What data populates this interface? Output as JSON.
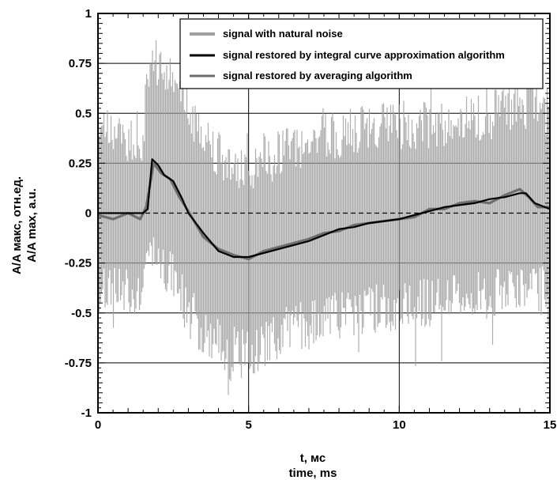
{
  "chart_data": {
    "type": "line",
    "xlabel": [
      "t, мс",
      "time, ms"
    ],
    "ylabel": [
      "A/A макс, отн.ед.",
      "A/A max, a.u."
    ],
    "xlim": [
      0,
      15
    ],
    "ylim": [
      -1,
      1
    ],
    "grid": true,
    "legend_position": "top-right",
    "x_ticks": [
      "0",
      "5",
      "10",
      "15"
    ],
    "y_ticks": [
      "1",
      "0.75",
      "0.5",
      "0.25",
      "0",
      "-0.25",
      "-0.5",
      "-0.75",
      "-1"
    ],
    "series": [
      {
        "name": "signal with natural noise",
        "color": "#a0a0a0",
        "style": "band",
        "x": [
          0,
          1.0,
          1.5,
          1.6,
          1.7,
          1.8,
          2.0,
          2.3,
          2.6,
          3.0,
          3.5,
          4.0,
          4.5,
          5.0,
          5.5,
          6.0,
          7.0,
          8.0,
          9.0,
          10.0,
          11.0,
          12.0,
          13.0,
          14.0,
          15.0
        ],
        "upper": [
          0.4,
          0.38,
          0.38,
          0.6,
          0.6,
          0.72,
          0.72,
          0.68,
          0.63,
          0.52,
          0.42,
          0.3,
          0.2,
          0.22,
          0.26,
          0.3,
          0.36,
          0.4,
          0.42,
          0.44,
          0.45,
          0.47,
          0.49,
          0.55,
          0.5
        ],
        "lower": [
          -0.4,
          -0.38,
          -0.38,
          -0.2,
          -0.2,
          -0.15,
          -0.2,
          -0.28,
          -0.35,
          -0.48,
          -0.6,
          -0.65,
          -0.68,
          -0.72,
          -0.66,
          -0.6,
          -0.55,
          -0.5,
          -0.48,
          -0.46,
          -0.45,
          -0.43,
          -0.41,
          -0.35,
          -0.4
        ]
      },
      {
        "name": "signal restored by integral curve approximation algorithm",
        "color": "#000000",
        "x": [
          0,
          1.5,
          1.65,
          1.8,
          2.0,
          2.2,
          2.5,
          2.8,
          3.0,
          3.5,
          4.0,
          4.5,
          5.0,
          5.5,
          6.0,
          6.5,
          7.0,
          7.5,
          8.0,
          8.5,
          9.0,
          9.5,
          10.0,
          10.5,
          11.0,
          11.5,
          12.0,
          12.5,
          13.0,
          13.5,
          14.0,
          14.2,
          14.5,
          15.0
        ],
        "y": [
          0,
          0,
          0.02,
          0.27,
          0.24,
          0.19,
          0.16,
          0.07,
          0.0,
          -0.1,
          -0.19,
          -0.22,
          -0.22,
          -0.2,
          -0.18,
          -0.16,
          -0.14,
          -0.11,
          -0.08,
          -0.07,
          -0.05,
          -0.04,
          -0.03,
          -0.01,
          0.01,
          0.03,
          0.04,
          0.05,
          0.07,
          0.08,
          0.1,
          0.1,
          0.05,
          0.02
        ]
      },
      {
        "name": "signal restored by averaging algorithm",
        "color": "#6e6e6e",
        "x": [
          0,
          0.5,
          1.0,
          1.4,
          1.6,
          1.85,
          2.1,
          2.4,
          2.7,
          3.0,
          3.5,
          4.0,
          4.5,
          5.0,
          5.5,
          6.0,
          6.5,
          7.0,
          7.5,
          8.0,
          8.5,
          9.0,
          9.5,
          10.0,
          10.5,
          11.0,
          11.5,
          12.0,
          12.5,
          13.0,
          13.5,
          14.0,
          14.3,
          14.6,
          15.0
        ],
        "y": [
          -0.01,
          -0.03,
          0.0,
          -0.03,
          0.03,
          0.25,
          0.2,
          0.17,
          0.08,
          0.01,
          -0.12,
          -0.18,
          -0.21,
          -0.23,
          -0.19,
          -0.17,
          -0.15,
          -0.13,
          -0.1,
          -0.09,
          -0.06,
          -0.05,
          -0.04,
          -0.03,
          -0.02,
          0.02,
          0.02,
          0.05,
          0.06,
          0.05,
          0.09,
          0.12,
          0.08,
          0.03,
          0.03
        ]
      }
    ]
  }
}
